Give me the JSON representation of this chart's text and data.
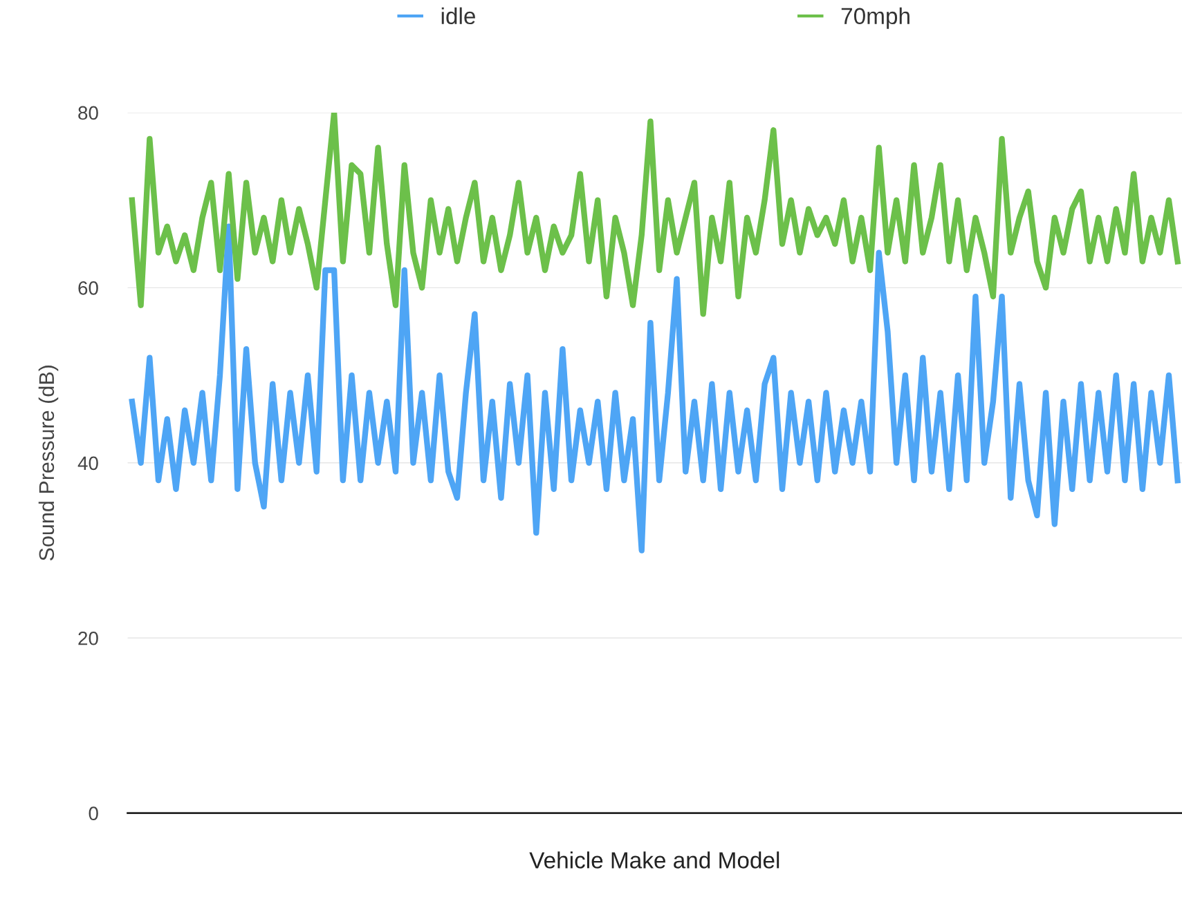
{
  "chart_data": {
    "type": "line",
    "xlabel": "Vehicle Make and Model",
    "ylabel": "Sound Pressure (dB)",
    "categories": [
      null,
      null,
      null,
      null,
      null,
      null,
      null,
      null,
      null,
      null,
      null,
      null,
      null,
      null,
      null,
      null,
      null,
      null,
      null,
      null,
      null,
      null,
      null,
      null,
      null,
      null,
      null,
      null,
      null,
      null,
      null,
      null,
      null,
      null,
      null,
      null,
      null,
      null,
      null,
      null,
      null,
      null,
      null,
      null,
      null,
      null,
      null,
      null,
      null,
      null,
      null,
      null,
      null,
      null,
      null,
      null,
      null,
      null,
      null,
      null,
      null,
      null,
      null,
      null,
      null,
      null,
      null,
      null,
      null,
      null,
      null,
      null,
      null,
      null,
      null,
      null,
      null,
      null,
      null,
      null,
      null,
      null,
      null,
      null,
      null,
      null,
      null,
      null,
      null,
      null,
      null,
      null,
      null,
      null,
      null,
      null,
      null,
      null,
      null,
      null,
      null,
      null,
      null,
      null,
      null,
      null,
      null,
      null,
      null,
      null,
      null,
      null,
      null,
      null,
      null,
      null,
      null,
      null,
      null,
      null
    ],
    "series": [
      {
        "name": "idle",
        "color": "#4ea5f5",
        "values": [
          47,
          40,
          52,
          38,
          45,
          37,
          46,
          40,
          48,
          38,
          50,
          67,
          37,
          53,
          40,
          35,
          49,
          38,
          48,
          40,
          50,
          39,
          62,
          62,
          38,
          50,
          38,
          48,
          40,
          47,
          39,
          62,
          40,
          48,
          38,
          50,
          39,
          36,
          48,
          57,
          38,
          47,
          36,
          49,
          40,
          50,
          32,
          48,
          37,
          53,
          38,
          46,
          40,
          47,
          37,
          48,
          38,
          45,
          30,
          56,
          38,
          48,
          61,
          39,
          47,
          38,
          49,
          37,
          48,
          39,
          46,
          38,
          49,
          52,
          37,
          48,
          40,
          47,
          38,
          48,
          39,
          46,
          40,
          47,
          39,
          64,
          55,
          40,
          50,
          38,
          52,
          39,
          48,
          37,
          50,
          38,
          59,
          40,
          47,
          59,
          36,
          49,
          38,
          34,
          48,
          33,
          47,
          37,
          49,
          38,
          48,
          39,
          50,
          38,
          49,
          37,
          48,
          40,
          50,
          38
        ]
      },
      {
        "name": "70mph",
        "color": "#6cc04a",
        "values": [
          70,
          58,
          77,
          64,
          67,
          63,
          66,
          62,
          68,
          72,
          62,
          73,
          61,
          72,
          64,
          68,
          63,
          70,
          64,
          69,
          65,
          60,
          70,
          80,
          63,
          74,
          73,
          64,
          76,
          65,
          58,
          74,
          64,
          60,
          70,
          64,
          69,
          63,
          68,
          72,
          63,
          68,
          62,
          66,
          72,
          64,
          68,
          62,
          67,
          64,
          66,
          73,
          63,
          70,
          59,
          68,
          64,
          58,
          66,
          79,
          62,
          70,
          64,
          68,
          72,
          57,
          68,
          63,
          72,
          59,
          68,
          64,
          70,
          78,
          65,
          70,
          64,
          69,
          66,
          68,
          65,
          70,
          63,
          68,
          62,
          76,
          64,
          70,
          63,
          74,
          64,
          68,
          74,
          63,
          70,
          62,
          68,
          64,
          59,
          77,
          64,
          68,
          71,
          63,
          60,
          68,
          64,
          69,
          71,
          63,
          68,
          63,
          69,
          64,
          73,
          63,
          68,
          64,
          70,
          63
        ]
      }
    ],
    "ylim": [
      0,
      80
    ],
    "yticks": [
      0,
      20,
      40,
      60,
      80
    ],
    "grid": "y",
    "legend": "top",
    "tick_labels": "y",
    "line_style": "solid",
    "marker": "none"
  }
}
